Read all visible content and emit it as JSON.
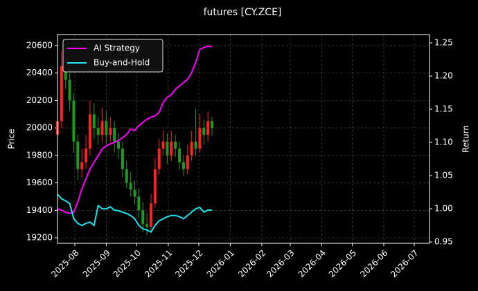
{
  "chart_data": {
    "type": "candlestick",
    "title": "futures [CY.ZCE]",
    "ylabel": "Price",
    "y2label": "Return",
    "x": [
      "2025-07-15",
      "2025-07-19",
      "2025-07-23",
      "2025-07-27",
      "2025-07-31",
      "2025-08-04",
      "2025-08-08",
      "2025-08-12",
      "2025-08-16",
      "2025-08-20",
      "2025-08-24",
      "2025-08-28",
      "2025-09-01",
      "2025-09-05",
      "2025-09-09",
      "2025-09-13",
      "2025-09-17",
      "2025-09-21",
      "2025-09-25",
      "2025-09-29",
      "2025-10-03",
      "2025-10-07",
      "2025-10-11",
      "2025-10-15",
      "2025-10-19",
      "2025-10-23",
      "2025-10-27",
      "2025-10-31",
      "2025-11-04",
      "2025-11-08",
      "2025-11-12",
      "2025-11-16",
      "2025-11-20",
      "2025-11-24",
      "2025-11-28",
      "2025-12-02",
      "2025-12-06",
      "2025-12-10",
      "2025-12-14"
    ],
    "open": [
      19950,
      20050,
      20450,
      20350,
      20200,
      19900,
      19700,
      19750,
      19850,
      20100,
      20000,
      19950,
      20050,
      19950,
      20000,
      19900,
      19850,
      19700,
      19600,
      19550,
      19500,
      19400,
      19300,
      19280,
      19450,
      19700,
      19850,
      19900,
      19800,
      19900,
      19850,
      19750,
      19700,
      19800,
      19900,
      19850,
      20000,
      19950,
      20050
    ],
    "high": [
      20150,
      20560,
      20520,
      20400,
      20250,
      19950,
      19850,
      19950,
      20200,
      20180,
      20080,
      20150,
      20120,
      20080,
      20050,
      19960,
      19900,
      19760,
      19680,
      19620,
      19560,
      19460,
      19380,
      19520,
      19780,
      19920,
      19980,
      19960,
      19980,
      19950,
      19900,
      19800,
      19880,
      19980,
      20140,
      20100,
      20060,
      20120,
      20080
    ],
    "low": [
      19900,
      20000,
      20280,
      20120,
      19820,
      19620,
      19640,
      19700,
      19800,
      19920,
      19880,
      19900,
      19880,
      19900,
      19820,
      19780,
      19640,
      19560,
      19500,
      19440,
      19340,
      19240,
      19220,
      19240,
      19420,
      19660,
      19800,
      19740,
      19760,
      19790,
      19700,
      19650,
      19660,
      19760,
      19800,
      19820,
      19880,
      19900,
      19940
    ],
    "close": [
      20050,
      20450,
      20350,
      20200,
      19900,
      19700,
      19750,
      19850,
      20100,
      20000,
      19950,
      20050,
      19950,
      20000,
      19900,
      19850,
      19700,
      19600,
      19550,
      19500,
      19400,
      19300,
      19280,
      19450,
      19700,
      19850,
      19900,
      19800,
      19900,
      19850,
      19750,
      19700,
      19800,
      19900,
      19850,
      20000,
      19950,
      20050,
      20000
    ],
    "up_color": "#ff2020",
    "down_color": "#1f9a1f",
    "series": [
      {
        "name": "AI Strategy",
        "color": "#ff00ff",
        "axis": "y2",
        "values": [
          1.0,
          0.998,
          0.995,
          0.993,
          0.995,
          1.01,
          1.03,
          1.045,
          1.06,
          1.07,
          1.08,
          1.09,
          1.095,
          1.098,
          1.1,
          1.103,
          1.107,
          1.112,
          1.12,
          1.118,
          1.125,
          1.13,
          1.135,
          1.138,
          1.14,
          1.145,
          1.16,
          1.168,
          1.172,
          1.18,
          1.185,
          1.19,
          1.195,
          1.205,
          1.22,
          1.24,
          1.243,
          1.245,
          1.244
        ]
      },
      {
        "name": "Buy-and-Hold",
        "color": "#19e6f0",
        "axis": "y2",
        "values": [
          1.022,
          1.015,
          1.012,
          1.008,
          0.985,
          0.978,
          0.975,
          0.978,
          0.98,
          0.975,
          1.005,
          1.0,
          1.0,
          1.003,
          0.998,
          0.997,
          0.995,
          0.993,
          0.99,
          0.985,
          0.975,
          0.97,
          0.968,
          0.965,
          0.975,
          0.982,
          0.985,
          0.988,
          0.99,
          0.99,
          0.988,
          0.985,
          0.99,
          0.995,
          1.0,
          1.002,
          0.995,
          0.998,
          0.998
        ]
      }
    ],
    "xlim": [
      "2025-07-15",
      "2026-07-16"
    ],
    "xticks": [
      {
        "value": "2025-08-01",
        "label": "2025-08"
      },
      {
        "value": "2025-09-01",
        "label": "2025-09"
      },
      {
        "value": "2025-10-01",
        "label": "2025-10"
      },
      {
        "value": "2025-11-01",
        "label": "2025-11"
      },
      {
        "value": "2025-12-01",
        "label": "2025-12"
      },
      {
        "value": "2026-01-01",
        "label": "2026-01"
      },
      {
        "value": "2026-02-01",
        "label": "2026-02"
      },
      {
        "value": "2026-03-01",
        "label": "2026-03"
      },
      {
        "value": "2026-04-01",
        "label": "2026-04"
      },
      {
        "value": "2026-05-01",
        "label": "2026-05"
      },
      {
        "value": "2026-06-01",
        "label": "2026-06"
      },
      {
        "value": "2026-07-01",
        "label": "2026-07"
      }
    ],
    "ylim": [
      19160,
      20680
    ],
    "yticks": [
      19200,
      19400,
      19600,
      19800,
      20000,
      20200,
      20400,
      20600
    ],
    "y2lim": [
      0.948,
      1.2625
    ],
    "y2ticks": [
      0.95,
      {
        "value": 1,
        "label": "1.00"
      },
      1.05,
      {
        "value": 1.1,
        "label": "1.10"
      },
      1.15,
      {
        "value": 1.2,
        "label": "1.20"
      },
      1.25
    ],
    "grid": true,
    "legend": "upper left"
  }
}
